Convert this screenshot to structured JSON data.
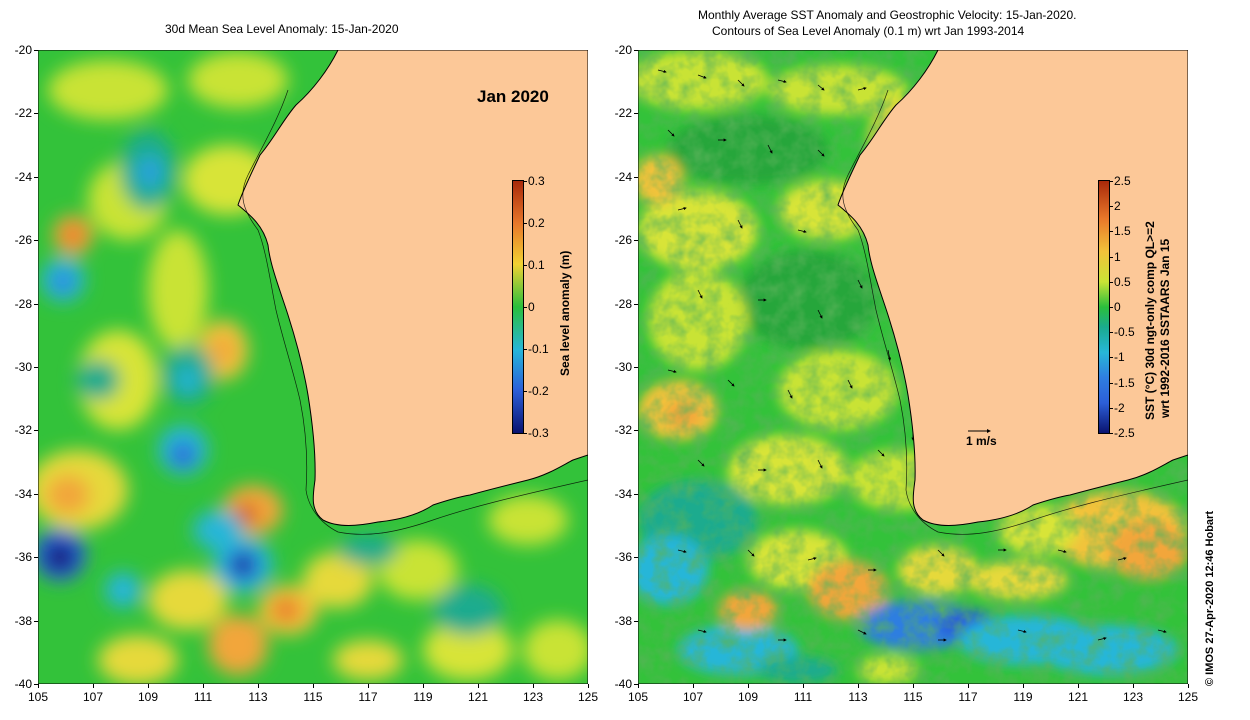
{
  "left_panel": {
    "title": "30d Mean Sea Level Anomaly: 15-Jan-2020",
    "badge": "Jan 2020",
    "colorbar": {
      "label": "Sea level anomaly (m)",
      "ticks": [
        "0.3",
        "0.2",
        "0.1",
        "0",
        "-0.1",
        "-0.2",
        "-0.3"
      ],
      "colors": [
        "#a8290a",
        "#e8782a",
        "#f1d233",
        "#2bbf3c",
        "#27b6d8",
        "#2c5fd8",
        "#0a1370"
      ]
    }
  },
  "right_panel": {
    "title_line1": "Monthly Average SST Anomaly  and Geostrophic Velocity: 15-Jan-2020.",
    "title_line2": "Contours of Sea Level Anomaly (0.1 m) wrt Jan 1993-2014",
    "colorbar": {
      "label_line1": "SST (°C) 30d ngt-only comp QL>=2",
      "label_line2": "wrt 1992-2016 SSTAARS Jan 15",
      "ticks": [
        "2.5",
        "2",
        "1.5",
        "1",
        "0.5",
        "0",
        "-0.5",
        "-1",
        "-1.5",
        "-2",
        "-2.5"
      ]
    },
    "velocity_reference": "1 m/s"
  },
  "axes": {
    "x_ticks": [
      "105",
      "107",
      "109",
      "111",
      "113",
      "115",
      "117",
      "119",
      "121",
      "123",
      "125"
    ],
    "y_ticks": [
      "-20",
      "-22",
      "-24",
      "-26",
      "-28",
      "-30",
      "-32",
      "-34",
      "-36",
      "-38",
      "-40"
    ]
  },
  "credit": "© IMOS 27-Apr-2020 12:46 Hobart",
  "colors": {
    "land": "#fcc898",
    "ocean_base": "#33c23a",
    "warm": "#e5e335",
    "orange": "#f2a63a",
    "cool": "#1aab8e",
    "blue": "#2f7ee0",
    "navy": "#0a1370"
  }
}
